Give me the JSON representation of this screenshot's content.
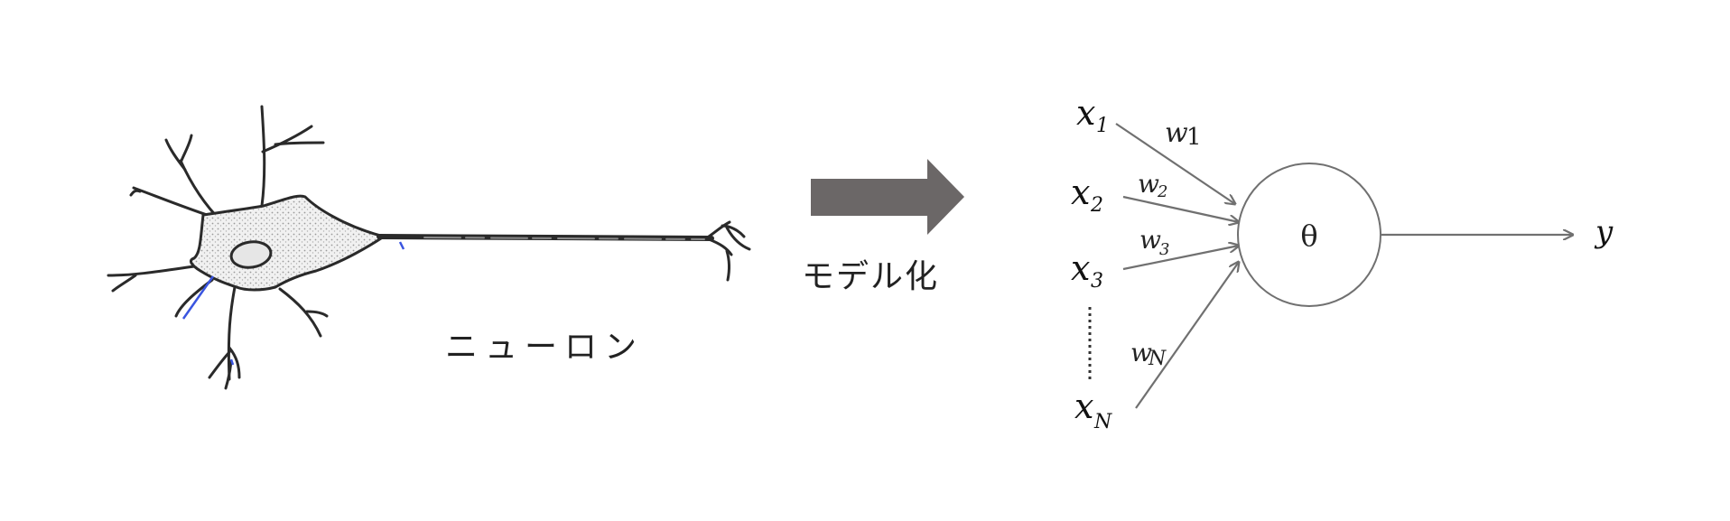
{
  "neuron_label": "ニューロン",
  "arrow_label": "モデル化",
  "model": {
    "inputs": [
      {
        "var": "x",
        "sub": "1"
      },
      {
        "var": "x",
        "sub": "2"
      },
      {
        "var": "x",
        "sub": "3"
      },
      {
        "var": "x",
        "sub": "N"
      }
    ],
    "weights": [
      {
        "var": "w",
        "sub": "1"
      },
      {
        "var": "w",
        "sub": "2"
      },
      {
        "var": "w",
        "sub": "3"
      },
      {
        "var": "w",
        "sub": "N"
      }
    ],
    "threshold": "θ",
    "output": "y"
  },
  "colors": {
    "model_arrow": "#6b6767",
    "line": "#707070",
    "ink": "#2a2a2a",
    "soma_fill": "#ececec",
    "blue_mark": "#3a55e0"
  }
}
